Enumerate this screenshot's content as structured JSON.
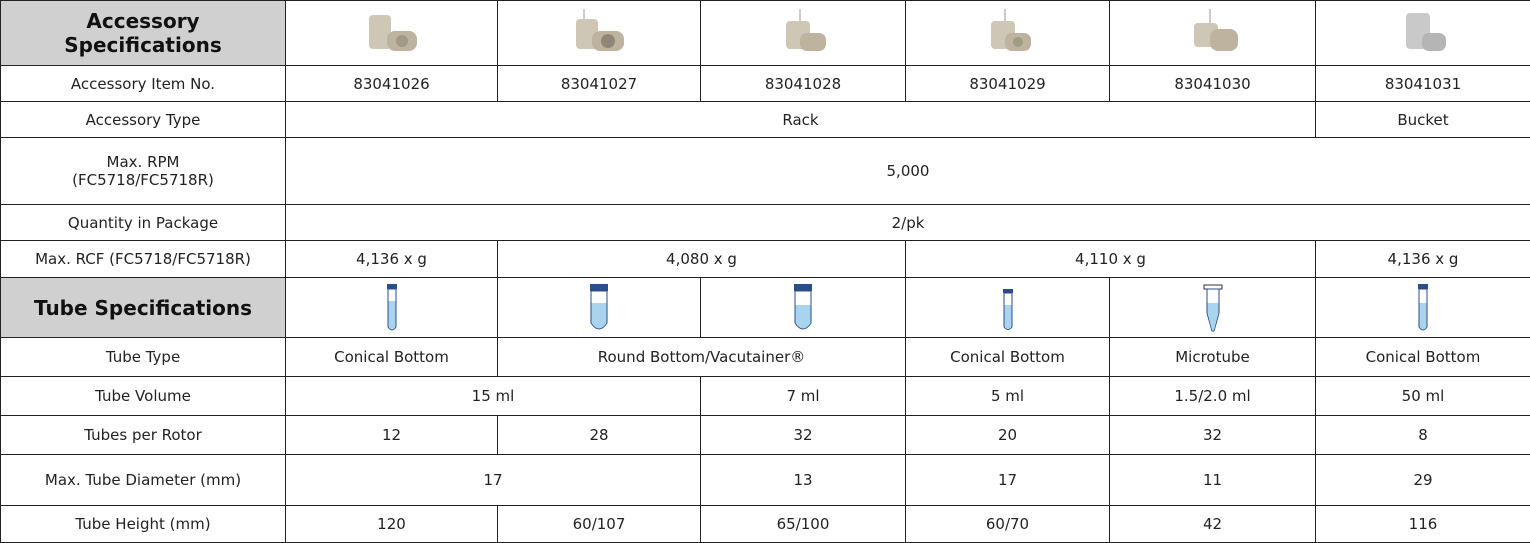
{
  "accessory_specifications": {
    "title": "Accessory Specifications",
    "item_no": {
      "label": "Accessory Item No.",
      "cells": [
        "83041026",
        "83041027",
        "83041028",
        "83041029",
        "83041030",
        "83041031"
      ]
    },
    "type": {
      "label": "Accessory Type",
      "cells": [
        "Rack",
        "Bucket"
      ]
    },
    "max_rpm": {
      "label": "Max. RPM\n(FC5718/FC5718R)",
      "cells": [
        "5,000"
      ]
    },
    "quantity": {
      "label": "Quantity in Package",
      "cells": [
        "2/pk"
      ]
    },
    "max_rcf": {
      "label": "Max. RCF (FC5718/FC5718R)",
      "cells": [
        "4,136 x g",
        "4,080 x g",
        "4,110 x g",
        "4,136 x g"
      ]
    }
  },
  "tube_specifications": {
    "title": "Tube Specifications",
    "tube_type": {
      "label": "Tube Type",
      "cells": [
        "Conical Bottom",
        "Round Bottom/Vacutainer®",
        "Conical Bottom",
        "Microtube",
        "Conical Bottom"
      ]
    },
    "tube_volume": {
      "label": "Tube Volume",
      "cells": [
        "15 ml",
        "7 ml",
        "5 ml",
        "1.5/2.0 ml",
        "50 ml"
      ]
    },
    "tubes_per_rotor": {
      "label": "Tubes per Rotor",
      "cells": [
        12,
        28,
        32,
        20,
        32,
        8
      ]
    },
    "max_diameter": {
      "label": "Max. Tube Diameter (mm)",
      "cells": [
        17,
        13,
        17,
        11,
        29
      ]
    },
    "tube_height": {
      "label": "Tube Height (mm)",
      "cells": [
        120,
        "60/107",
        "65/100",
        "60/70",
        42,
        116
      ]
    }
  }
}
